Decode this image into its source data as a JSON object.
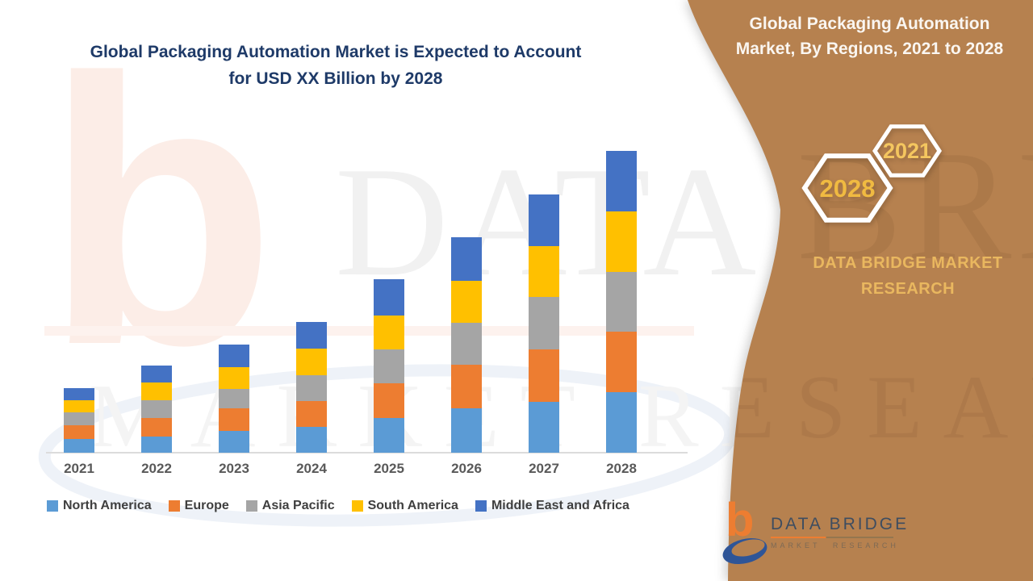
{
  "header": {
    "title_line1": "Global Packaging Automation Market is Expected to Account",
    "title_line2": "for USD XX Billion by 2028",
    "title_color": "#1e3a68"
  },
  "side_panel": {
    "panel_color": "#b6814f",
    "title_line1": "Global Packaging Automation",
    "title_line2": "Market, By Regions, 2021 to 2028",
    "hexagons": [
      {
        "label": "2021",
        "text_color": "#f4c65f"
      },
      {
        "label": "2028",
        "text_color": "#f0ba41"
      }
    ],
    "brand_line1": "DATA BRIDGE MARKET",
    "brand_line2": "RESEARCH",
    "brand_color": "#e9b75f",
    "logo": {
      "glyph": "b",
      "name": "DATA BRIDGE",
      "subtitle": "MARKET RESEARCH",
      "glyph_color": "#ed7d31",
      "swoosh_color": "#2f5597"
    }
  },
  "watermark": {
    "line1": "DATA BRIDGE",
    "line2": "MARKET RESEARCH",
    "logo_glyph": "b"
  },
  "chart_data": {
    "type": "bar",
    "stacked": true,
    "title": "Global Packaging Automation Market is Expected to Account for USD XX Billion by 2028",
    "xlabel": "",
    "ylabel": "",
    "y_axis_labeled": false,
    "units_note": "values are relative units estimated from bar pixel heights; actual axis values hidden (USD XX Billion)",
    "ylim": [
      0,
      400
    ],
    "grid": false,
    "legend_position": "bottom",
    "categories": [
      "2021",
      "2022",
      "2023",
      "2024",
      "2025",
      "2026",
      "2027",
      "2028"
    ],
    "series": [
      {
        "name": "North America",
        "color": "#5b9bd5",
        "values": [
          17,
          20,
          27,
          32,
          43,
          55,
          63,
          75
        ]
      },
      {
        "name": "Europe",
        "color": "#ed7d31",
        "values": [
          17,
          23,
          28,
          32,
          43,
          54,
          65,
          75
        ]
      },
      {
        "name": "Asia Pacific",
        "color": "#a5a5a5",
        "values": [
          16,
          22,
          24,
          32,
          42,
          52,
          65,
          74
        ]
      },
      {
        "name": "South America",
        "color": "#ffc000",
        "values": [
          15,
          22,
          27,
          33,
          42,
          52,
          63,
          75
        ]
      },
      {
        "name": "Middle East and Africa",
        "color": "#4472c4",
        "values": [
          15,
          21,
          28,
          33,
          45,
          54,
          64,
          75
        ]
      }
    ],
    "totals": [
      80,
      108,
      134,
      162,
      215,
      267,
      320,
      374
    ],
    "axis_line_color": "#dcdcdc"
  }
}
